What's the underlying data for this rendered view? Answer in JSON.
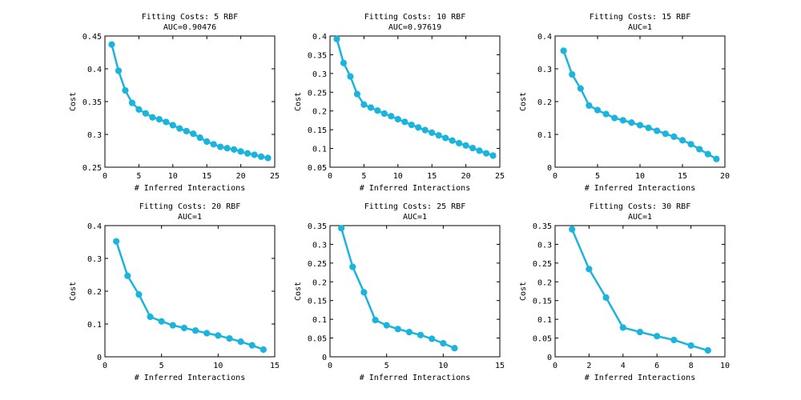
{
  "chart_data": [
    {
      "type": "line",
      "title": "Fitting Costs: 5 RBF",
      "subtitle": "AUC=0.90476",
      "xlabel": "# Inferred Interactions",
      "ylabel": "Cost",
      "xlim": [
        0,
        25
      ],
      "ylim": [
        0.25,
        0.45
      ],
      "xticks": [
        0,
        5,
        10,
        15,
        20,
        25
      ],
      "yticks": [
        0.25,
        0.3,
        0.35,
        0.4,
        0.45
      ],
      "xtick_labels": [
        "0",
        "5",
        "10",
        "15",
        "20",
        "25"
      ],
      "ytick_labels": [
        "0.25",
        "0.3",
        "0.35",
        "0.4",
        "0.45"
      ],
      "grid": false,
      "color": "#1ab4dc",
      "x": [
        1,
        2,
        3,
        4,
        5,
        6,
        7,
        8,
        9,
        10,
        11,
        12,
        13,
        14,
        15,
        16,
        17,
        18,
        19,
        20,
        21,
        22,
        23,
        24
      ],
      "y": [
        0.437,
        0.397,
        0.367,
        0.348,
        0.338,
        0.332,
        0.326,
        0.323,
        0.319,
        0.314,
        0.309,
        0.305,
        0.301,
        0.295,
        0.289,
        0.285,
        0.281,
        0.279,
        0.277,
        0.274,
        0.271,
        0.269,
        0.266,
        0.264
      ]
    },
    {
      "type": "line",
      "title": "Fitting Costs: 10 RBF",
      "subtitle": "AUC=0.97619",
      "xlabel": "# Inferred Interactions",
      "ylabel": "Cost",
      "xlim": [
        0,
        25
      ],
      "ylim": [
        0.05,
        0.4
      ],
      "xticks": [
        0,
        5,
        10,
        15,
        20,
        25
      ],
      "yticks": [
        0.05,
        0.1,
        0.15,
        0.2,
        0.25,
        0.3,
        0.35,
        0.4
      ],
      "xtick_labels": [
        "0",
        "5",
        "10",
        "15",
        "20",
        "25"
      ],
      "ytick_labels": [
        "0.05",
        "0.1",
        "0.15",
        "0.2",
        "0.25",
        "0.3",
        "0.35",
        "0.4"
      ],
      "grid": false,
      "color": "#1ab4dc",
      "x": [
        1,
        2,
        3,
        4,
        5,
        6,
        7,
        8,
        9,
        10,
        11,
        12,
        13,
        14,
        15,
        16,
        17,
        18,
        19,
        20,
        21,
        22,
        23,
        24
      ],
      "y": [
        0.392,
        0.328,
        0.292,
        0.245,
        0.217,
        0.209,
        0.201,
        0.193,
        0.186,
        0.178,
        0.171,
        0.163,
        0.156,
        0.149,
        0.142,
        0.135,
        0.128,
        0.121,
        0.114,
        0.108,
        0.101,
        0.094,
        0.087,
        0.081
      ]
    },
    {
      "type": "line",
      "title": "Fitting Costs: 15 RBF",
      "subtitle": "AUC=1",
      "xlabel": "# Inferred Interactions",
      "ylabel": "Cost",
      "xlim": [
        0,
        20
      ],
      "ylim": [
        0,
        0.4
      ],
      "xticks": [
        0,
        5,
        10,
        15,
        20
      ],
      "yticks": [
        0,
        0.1,
        0.2,
        0.3,
        0.4
      ],
      "xtick_labels": [
        "0",
        "5",
        "10",
        "15",
        "20"
      ],
      "ytick_labels": [
        "0",
        "0.1",
        "0.2",
        "0.3",
        "0.4"
      ],
      "grid": false,
      "color": "#1ab4dc",
      "x": [
        1,
        2,
        3,
        4,
        5,
        6,
        7,
        8,
        9,
        10,
        11,
        12,
        13,
        14,
        15,
        16,
        17,
        18,
        19
      ],
      "y": [
        0.355,
        0.283,
        0.24,
        0.188,
        0.174,
        0.162,
        0.15,
        0.143,
        0.136,
        0.128,
        0.12,
        0.111,
        0.102,
        0.093,
        0.082,
        0.07,
        0.055,
        0.04,
        0.025
      ]
    },
    {
      "type": "line",
      "title": "Fitting Costs: 20 RBF",
      "subtitle": "AUC=1",
      "xlabel": "# Inferred Interactions",
      "ylabel": "Cost",
      "xlim": [
        0,
        15
      ],
      "ylim": [
        0,
        0.4
      ],
      "xticks": [
        0,
        5,
        10,
        15
      ],
      "yticks": [
        0,
        0.1,
        0.2,
        0.3,
        0.4
      ],
      "xtick_labels": [
        "0",
        "5",
        "10",
        "15"
      ],
      "ytick_labels": [
        "0",
        "0.1",
        "0.2",
        "0.3",
        "0.4"
      ],
      "grid": false,
      "color": "#1ab4dc",
      "x": [
        1,
        2,
        3,
        4,
        5,
        6,
        7,
        8,
        9,
        10,
        11,
        12,
        13,
        14
      ],
      "y": [
        0.352,
        0.247,
        0.19,
        0.122,
        0.108,
        0.096,
        0.088,
        0.08,
        0.072,
        0.065,
        0.056,
        0.046,
        0.035,
        0.022
      ]
    },
    {
      "type": "line",
      "title": "Fitting Costs: 25 RBF",
      "subtitle": "AUC=1",
      "xlabel": "# Inferred Interactions",
      "ylabel": "Cost",
      "xlim": [
        0,
        15
      ],
      "ylim": [
        0,
        0.35
      ],
      "xticks": [
        0,
        5,
        10,
        15
      ],
      "yticks": [
        0,
        0.05,
        0.1,
        0.15,
        0.2,
        0.25,
        0.3,
        0.35
      ],
      "xtick_labels": [
        "0",
        "5",
        "10",
        "15"
      ],
      "ytick_labels": [
        "0",
        "0.05",
        "0.1",
        "0.15",
        "0.2",
        "0.25",
        "0.3",
        "0.35"
      ],
      "grid": false,
      "color": "#1ab4dc",
      "x": [
        1,
        2,
        3,
        4,
        5,
        6,
        7,
        8,
        9,
        10,
        11
      ],
      "y": [
        0.343,
        0.24,
        0.172,
        0.098,
        0.084,
        0.074,
        0.066,
        0.058,
        0.048,
        0.036,
        0.023
      ]
    },
    {
      "type": "line",
      "title": "Fitting Costs: 30 RBF",
      "subtitle": "AUC=1",
      "xlabel": "# Inferred Interactions",
      "ylabel": "Cost",
      "xlim": [
        0,
        10
      ],
      "ylim": [
        0,
        0.35
      ],
      "xticks": [
        0,
        2,
        4,
        6,
        8,
        10
      ],
      "yticks": [
        0,
        0.05,
        0.1,
        0.15,
        0.2,
        0.25,
        0.3,
        0.35
      ],
      "xtick_labels": [
        "0",
        "2",
        "4",
        "6",
        "8",
        "10"
      ],
      "ytick_labels": [
        "0",
        "0.05",
        "0.1",
        "0.15",
        "0.2",
        "0.25",
        "0.3",
        "0.35"
      ],
      "grid": false,
      "color": "#1ab4dc",
      "x": [
        1,
        2,
        3,
        4,
        5,
        6,
        7,
        8,
        9
      ],
      "y": [
        0.34,
        0.234,
        0.158,
        0.078,
        0.066,
        0.055,
        0.045,
        0.03,
        0.017
      ]
    }
  ]
}
